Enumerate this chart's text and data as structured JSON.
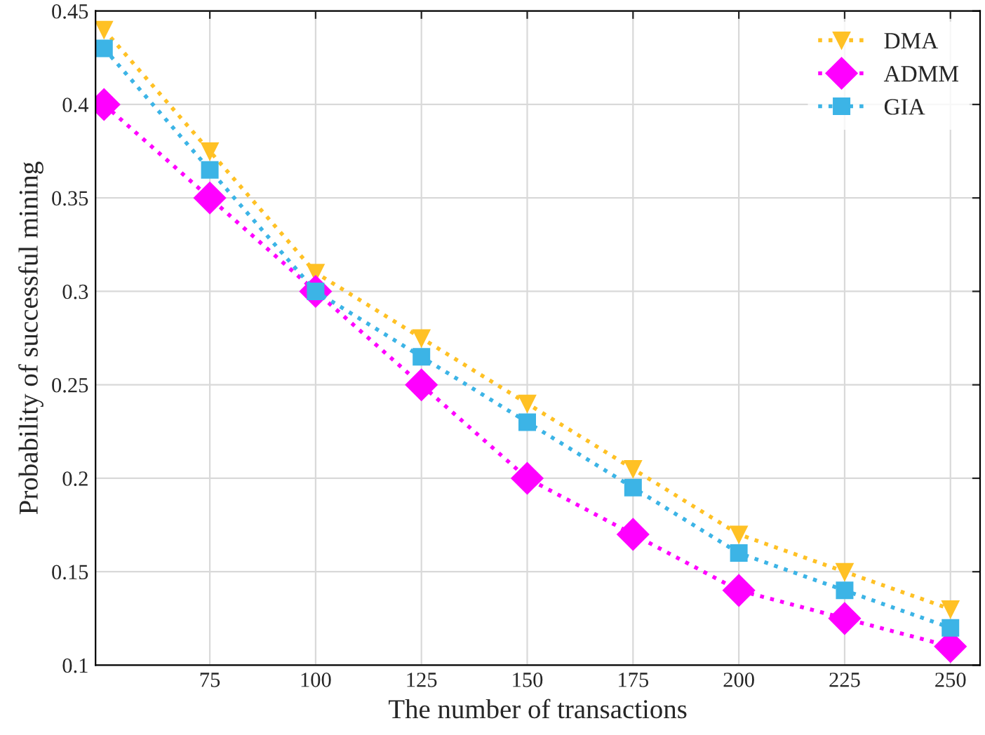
{
  "chart_data": {
    "type": "line",
    "xlabel": "The number of transactions",
    "ylabel": "Probability of successful mining",
    "x": [
      50,
      75,
      100,
      125,
      150,
      175,
      200,
      225,
      250
    ],
    "series": [
      {
        "name": "DMA",
        "color": "#ffc125",
        "marker": "triangle",
        "values": [
          0.44,
          0.375,
          0.31,
          0.275,
          0.24,
          0.205,
          0.17,
          0.15,
          0.13
        ]
      },
      {
        "name": "ADMM",
        "color": "#ff00ff",
        "marker": "diamond",
        "values": [
          0.4,
          0.35,
          0.3,
          0.25,
          0.2,
          0.17,
          0.14,
          0.125,
          0.11
        ]
      },
      {
        "name": "GIA",
        "color": "#3cb4e6",
        "marker": "square",
        "values": [
          0.43,
          0.365,
          0.3,
          0.265,
          0.23,
          0.195,
          0.16,
          0.14,
          0.12
        ]
      }
    ],
    "xlim": [
      48,
      257
    ],
    "xticks": [
      75,
      100,
      125,
      150,
      175,
      200,
      225,
      250
    ],
    "ylim": [
      0.1,
      0.45
    ],
    "yticks": [
      0.1,
      0.15,
      0.2,
      0.25,
      0.3,
      0.35,
      0.4,
      0.45
    ],
    "grid": true,
    "legend": "top right",
    "line_style": "dotted"
  }
}
